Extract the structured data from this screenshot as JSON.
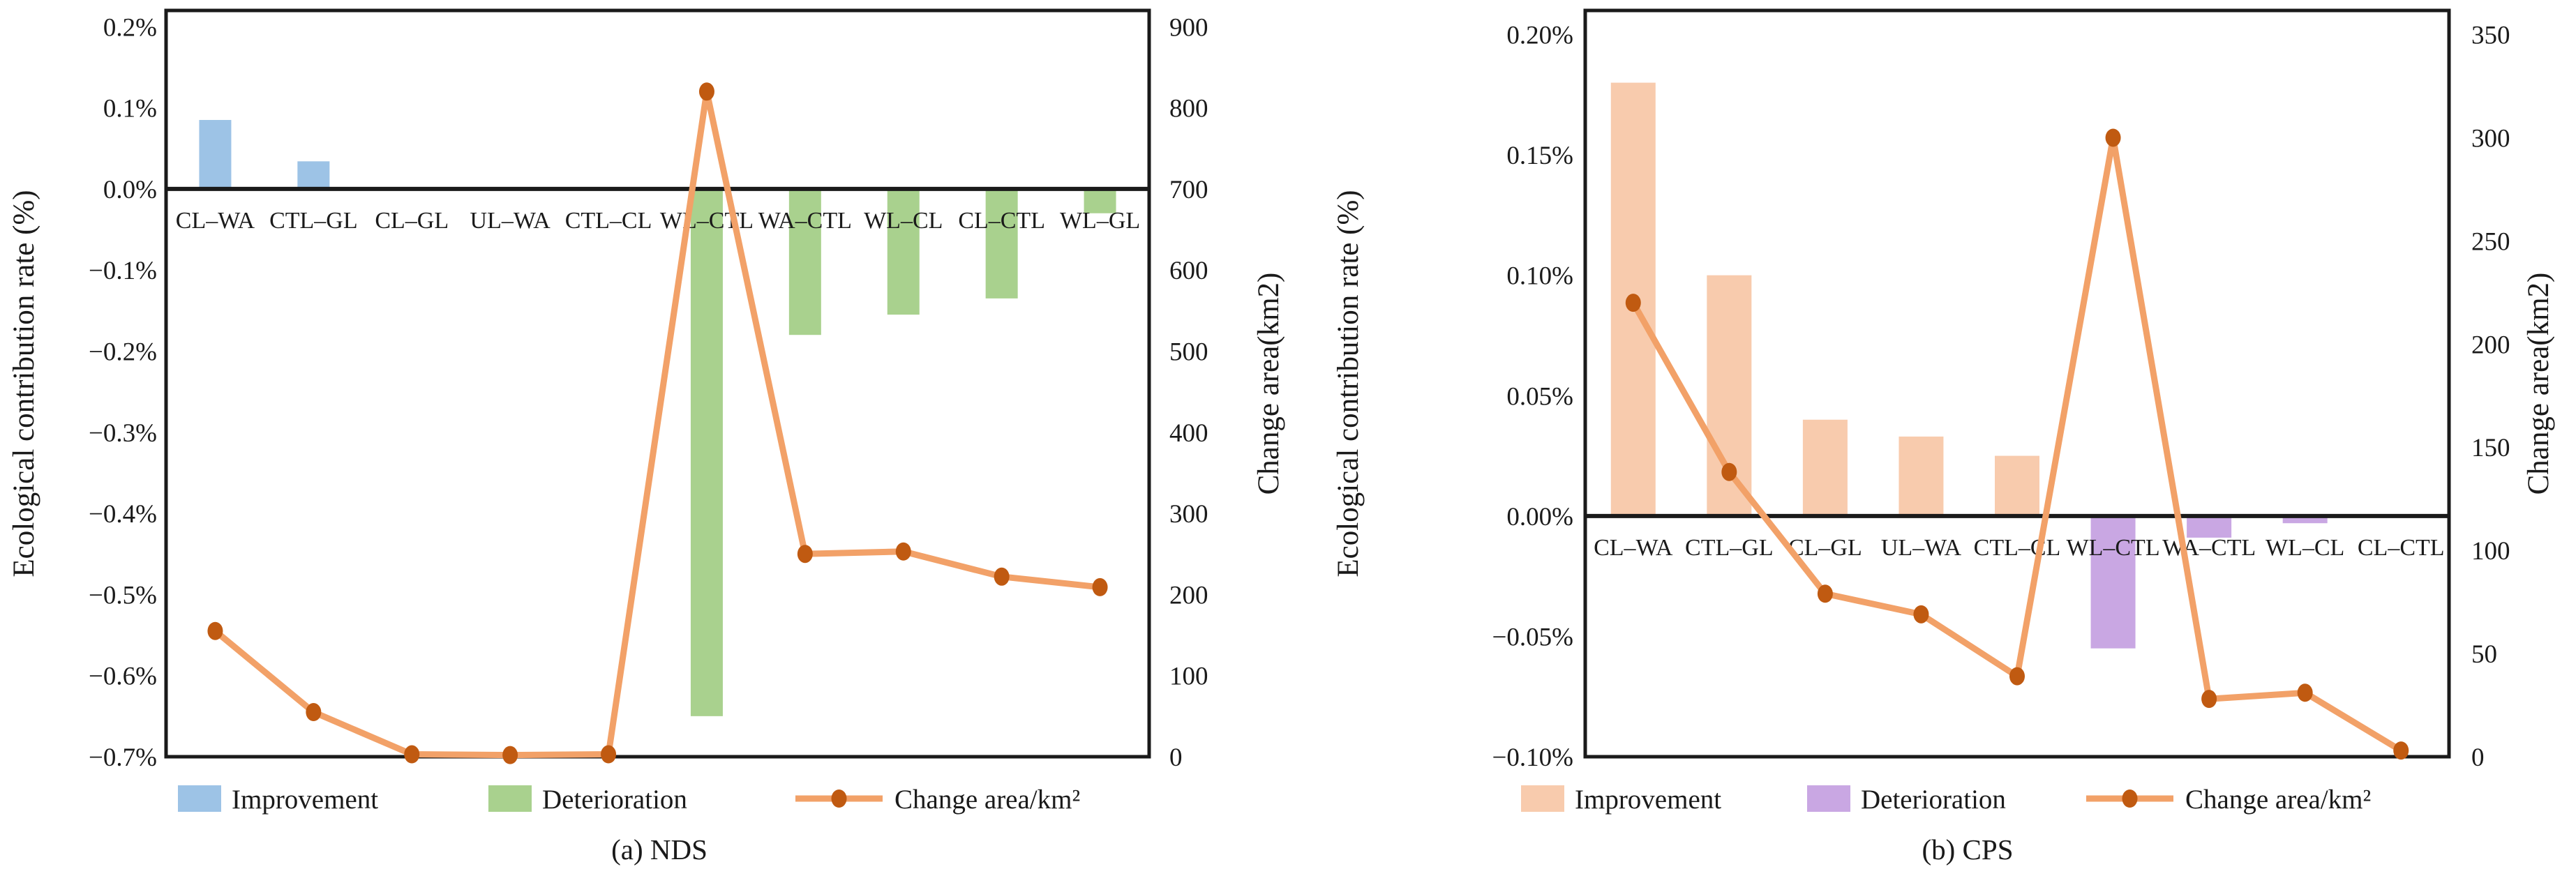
{
  "figure": {
    "background": "#ffffff",
    "frame_color": "#1a1a1a"
  },
  "chart_data": [
    {
      "id": "nds",
      "type": "bar+line",
      "caption": "(a) NDS",
      "categories": [
        "CL–WA",
        "CTL–GL",
        "CL–GL",
        "UL–WA",
        "CTL–CL",
        "WL–CTL",
        "WA–CTL",
        "WL–CL",
        "CL–CTL",
        "WL–GL"
      ],
      "left_axis": {
        "title": "Ecological contribution rate (%)",
        "tick_labels": [
          "0.2%",
          "0.1%",
          "0.0%",
          "−0.1%",
          "−0.2%",
          "−0.3%",
          "−0.4%",
          "−0.5%",
          "−0.6%",
          "−0.7%"
        ],
        "tick_values": [
          0.2,
          0.1,
          0.0,
          -0.1,
          -0.2,
          -0.3,
          -0.4,
          -0.5,
          -0.6,
          -0.7
        ],
        "range": [
          -0.7,
          0.22
        ],
        "grid": false
      },
      "right_axis": {
        "title": "Change area(km2)",
        "tick_labels": [
          "900",
          "800",
          "700",
          "600",
          "500",
          "400",
          "300",
          "200",
          "100",
          "0"
        ],
        "tick_values": [
          900,
          800,
          700,
          600,
          500,
          400,
          300,
          200,
          100,
          0
        ],
        "range": [
          0,
          920
        ]
      },
      "bars": {
        "improvement_label": "Improvement",
        "deterioration_label": "Deterioration",
        "improvement_color": "#9DC3E6",
        "deterioration_color": "#A9D18E",
        "values": [
          0.085,
          0.034,
          0,
          0,
          0,
          -0.65,
          -0.18,
          -0.155,
          -0.135,
          -0.03
        ]
      },
      "line": {
        "label": "Change area/km²",
        "color": "#F2A168",
        "marker_color": "#C05A11",
        "values": [
          155,
          55,
          3,
          2,
          3,
          820,
          250,
          253,
          222,
          209
        ]
      },
      "legend_position": "bottom"
    },
    {
      "id": "cps",
      "type": "bar+line",
      "caption": "(b) CPS",
      "categories": [
        "CL–WA",
        "CTL–GL",
        "CL–GL",
        "UL–WA",
        "CTL–CL",
        "WL–CTL",
        "WA–CTL",
        "WL–CL",
        "CL–CTL"
      ],
      "left_axis": {
        "title": "Ecological contribution rate (%)",
        "tick_labels": [
          "0.20%",
          "0.15%",
          "0.10%",
          "0.05%",
          "0.00%",
          "−0.05%",
          "−0.10%"
        ],
        "tick_values": [
          0.2,
          0.15,
          0.1,
          0.05,
          0.0,
          -0.05,
          -0.1
        ],
        "range": [
          -0.1,
          0.21
        ],
        "grid": false
      },
      "right_axis": {
        "title": "Change area(km2)",
        "tick_labels": [
          "350",
          "300",
          "250",
          "200",
          "150",
          "100",
          "50",
          "0"
        ],
        "tick_values": [
          350,
          300,
          250,
          200,
          150,
          100,
          50,
          0
        ],
        "range": [
          0,
          361.67
        ]
      },
      "bars": {
        "improvement_label": "Improvement",
        "deterioration_label": "Deterioration",
        "improvement_color": "#F8CBAD",
        "deterioration_color": "#C9A7E3",
        "values": [
          0.18,
          0.1,
          0.04,
          0.033,
          0.025,
          -0.055,
          -0.009,
          -0.003,
          0
        ]
      },
      "line": {
        "label": "Change area/km²",
        "color": "#F2A168",
        "marker_color": "#C05A11",
        "values": [
          220,
          138,
          79,
          69,
          39,
          300,
          28,
          31,
          3
        ]
      },
      "legend_position": "bottom"
    }
  ]
}
